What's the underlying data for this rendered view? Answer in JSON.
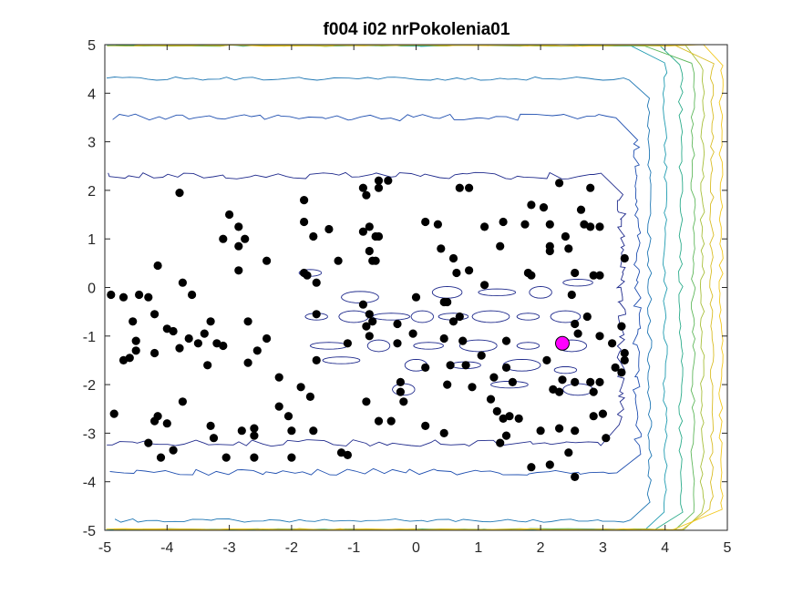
{
  "chart_data": {
    "type": "scatter",
    "title": "f004 i02 nrPokolenia01",
    "xlabel": "",
    "ylabel": "",
    "xlim": [
      -5,
      5
    ],
    "ylim": [
      -5,
      5
    ],
    "x_ticks": [
      "-5",
      "-4",
      "-3",
      "-2",
      "-1",
      "0",
      "1",
      "2",
      "3",
      "4",
      "5"
    ],
    "y_ticks": [
      "5",
      "4",
      "3",
      "2",
      "1",
      "0",
      "-1",
      "-2",
      "-3",
      "-4",
      "-5"
    ],
    "grid": false,
    "background": "contour",
    "colors": {
      "points": "#000000",
      "best": "#ff00ff",
      "contour_levels": [
        "#1f2a8c",
        "#1f4fb0",
        "#1f77b4",
        "#1f9bb0",
        "#2aab8a",
        "#5fb85c",
        "#a7bf3a",
        "#d9bd26",
        "#f2c81e"
      ]
    },
    "series": [
      {
        "points": [
          [
            -4.9,
            -0.15
          ],
          [
            -4.7,
            -0.2
          ],
          [
            -4.45,
            -0.15
          ],
          [
            -4.55,
            -0.7
          ],
          [
            -4.5,
            -1.1
          ],
          [
            -4.6,
            -1.45
          ],
          [
            -4.7,
            -1.5
          ],
          [
            -4.5,
            -1.3
          ],
          [
            -4.15,
            0.45
          ],
          [
            -4.3,
            -0.2
          ],
          [
            -4.2,
            -0.55
          ],
          [
            -4.0,
            -0.85
          ],
          [
            -4.2,
            -1.35
          ],
          [
            -3.9,
            -0.9
          ],
          [
            -3.8,
            -1.25
          ],
          [
            -3.65,
            -1.05
          ],
          [
            -3.75,
            0.1
          ],
          [
            -3.6,
            -0.15
          ],
          [
            -3.4,
            -0.95
          ],
          [
            -3.3,
            -0.7
          ],
          [
            -3.5,
            -1.15
          ],
          [
            -3.2,
            -1.15
          ],
          [
            -3.35,
            -1.6
          ],
          [
            -3.1,
            -1.2
          ],
          [
            -3.75,
            -2.35
          ],
          [
            -4.15,
            -2.65
          ],
          [
            -4.2,
            -2.75
          ],
          [
            -4.0,
            -2.8
          ],
          [
            -4.3,
            -3.2
          ],
          [
            -4.1,
            -3.5
          ],
          [
            -3.9,
            -3.35
          ],
          [
            -3.3,
            -2.85
          ],
          [
            -3.25,
            -3.1
          ],
          [
            -3.05,
            -3.5
          ],
          [
            -2.8,
            -2.95
          ],
          [
            -2.6,
            -2.9
          ],
          [
            -2.6,
            -3.05
          ],
          [
            -2.6,
            -3.5
          ],
          [
            -4.85,
            -2.6
          ],
          [
            -3.8,
            1.95
          ],
          [
            -3.0,
            1.5
          ],
          [
            -2.85,
            1.25
          ],
          [
            -2.85,
            0.85
          ],
          [
            -2.75,
            1.0
          ],
          [
            -3.1,
            1.0
          ],
          [
            -2.85,
            0.35
          ],
          [
            -2.7,
            -0.7
          ],
          [
            -2.55,
            -1.3
          ],
          [
            -2.4,
            -1.05
          ],
          [
            -2.7,
            -1.55
          ],
          [
            -2.2,
            -1.85
          ],
          [
            -2.4,
            0.55
          ],
          [
            -2.2,
            -2.45
          ],
          [
            -2.05,
            -2.65
          ],
          [
            -2.0,
            -2.95
          ],
          [
            -2.0,
            -3.5
          ],
          [
            -1.85,
            -2.05
          ],
          [
            -1.8,
            1.8
          ],
          [
            -1.8,
            1.35
          ],
          [
            -1.8,
            0.3
          ],
          [
            -1.75,
            0.25
          ],
          [
            -1.65,
            1.05
          ],
          [
            -1.6,
            -0.55
          ],
          [
            -1.6,
            -1.5
          ],
          [
            -1.6,
            0.1
          ],
          [
            -1.7,
            -2.25
          ],
          [
            -1.65,
            -2.95
          ],
          [
            -1.4,
            1.2
          ],
          [
            -1.25,
            0.55
          ],
          [
            -1.1,
            -1.15
          ],
          [
            -1.1,
            -3.45
          ],
          [
            -1.2,
            -3.4
          ],
          [
            -0.85,
            2.05
          ],
          [
            -0.8,
            1.9
          ],
          [
            -0.85,
            1.15
          ],
          [
            -0.75,
            1.25
          ],
          [
            -0.65,
            1.05
          ],
          [
            -0.7,
            0.55
          ],
          [
            -0.75,
            0.75
          ],
          [
            -0.85,
            -0.35
          ],
          [
            -0.75,
            -0.55
          ],
          [
            -0.8,
            -0.8
          ],
          [
            -0.7,
            -0.7
          ],
          [
            -0.75,
            -1.0
          ],
          [
            -0.8,
            -2.35
          ],
          [
            -0.6,
            1.05
          ],
          [
            -0.6,
            2.2
          ],
          [
            -0.45,
            2.2
          ],
          [
            -0.65,
            0.55
          ],
          [
            -0.6,
            2.05
          ],
          [
            -0.6,
            -2.75
          ],
          [
            -0.4,
            -2.75
          ],
          [
            -0.3,
            -0.75
          ],
          [
            -0.3,
            -1.15
          ],
          [
            -0.25,
            -2.15
          ],
          [
            -0.2,
            -2.35
          ],
          [
            -0.25,
            -1.95
          ],
          [
            -0.05,
            -0.95
          ],
          [
            0.15,
            1.35
          ],
          [
            0.15,
            -1.65
          ],
          [
            0.15,
            -2.85
          ],
          [
            0.35,
            1.3
          ],
          [
            0.4,
            0.8
          ],
          [
            0.45,
            -0.3
          ],
          [
            0.5,
            -0.3
          ],
          [
            0.45,
            -1.05
          ],
          [
            0.55,
            -1.6
          ],
          [
            0.6,
            0.6
          ],
          [
            0.6,
            -0.7
          ],
          [
            0.5,
            -2.0
          ],
          [
            0.45,
            -3.0
          ],
          [
            0.65,
            0.3
          ],
          [
            0.7,
            -0.6
          ],
          [
            0.75,
            -1.1
          ],
          [
            0.7,
            2.05
          ],
          [
            0.85,
            2.05
          ],
          [
            0.85,
            0.35
          ],
          [
            0.9,
            -2.05
          ],
          [
            1.05,
            -1.4
          ],
          [
            1.1,
            1.25
          ],
          [
            1.1,
            0.05
          ],
          [
            1.25,
            -1.85
          ],
          [
            1.2,
            -2.3
          ],
          [
            1.3,
            -2.55
          ],
          [
            1.35,
            -3.2
          ],
          [
            1.4,
            1.35
          ],
          [
            1.35,
            0.85
          ],
          [
            1.4,
            -2.7
          ],
          [
            1.45,
            -3.05
          ],
          [
            1.45,
            -1.1
          ],
          [
            1.45,
            -1.65
          ],
          [
            1.5,
            -2.65
          ],
          [
            1.55,
            -1.95
          ],
          [
            1.65,
            -2.7
          ],
          [
            1.75,
            1.3
          ],
          [
            1.85,
            1.7
          ],
          [
            1.8,
            0.3
          ],
          [
            1.85,
            0.25
          ],
          [
            2.0,
            -2.95
          ],
          [
            2.05,
            1.65
          ],
          [
            2.15,
            1.3
          ],
          [
            2.15,
            0.75
          ],
          [
            2.15,
            0.85
          ],
          [
            2.1,
            -1.5
          ],
          [
            2.2,
            -2.1
          ],
          [
            2.3,
            -2.15
          ],
          [
            2.35,
            -1.9
          ],
          [
            2.3,
            -2.9
          ],
          [
            2.3,
            2.15
          ],
          [
            2.4,
            1.05
          ],
          [
            2.45,
            0.8
          ],
          [
            2.45,
            -3.4
          ],
          [
            2.55,
            0.3
          ],
          [
            2.5,
            -0.15
          ],
          [
            2.55,
            -0.75
          ],
          [
            2.55,
            -1.95
          ],
          [
            2.55,
            -2.95
          ],
          [
            2.6,
            -0.95
          ],
          [
            2.65,
            1.6
          ],
          [
            2.7,
            1.3
          ],
          [
            2.75,
            -0.6
          ],
          [
            2.8,
            2.05
          ],
          [
            2.8,
            1.25
          ],
          [
            2.8,
            -1.95
          ],
          [
            2.85,
            0.25
          ],
          [
            2.85,
            -2.15
          ],
          [
            2.85,
            -2.65
          ],
          [
            2.95,
            1.25
          ],
          [
            2.95,
            0.25
          ],
          [
            2.95,
            -1.0
          ],
          [
            2.95,
            -1.95
          ],
          [
            3.0,
            -2.6
          ],
          [
            3.05,
            -3.1
          ],
          [
            3.15,
            -1.15
          ],
          [
            3.2,
            -1.65
          ],
          [
            3.3,
            -1.75
          ],
          [
            3.3,
            -0.8
          ],
          [
            3.35,
            -1.35
          ],
          [
            3.35,
            -1.5
          ],
          [
            3.35,
            0.6
          ],
          [
            1.85,
            -3.7
          ],
          [
            2.15,
            -3.65
          ],
          [
            2.55,
            -3.9
          ],
          [
            0.8,
            -1.6
          ],
          [
            0.0,
            -0.2
          ]
        ]
      },
      {
        "points": [
          [
            2.35,
            -1.15
          ]
        ]
      }
    ]
  }
}
